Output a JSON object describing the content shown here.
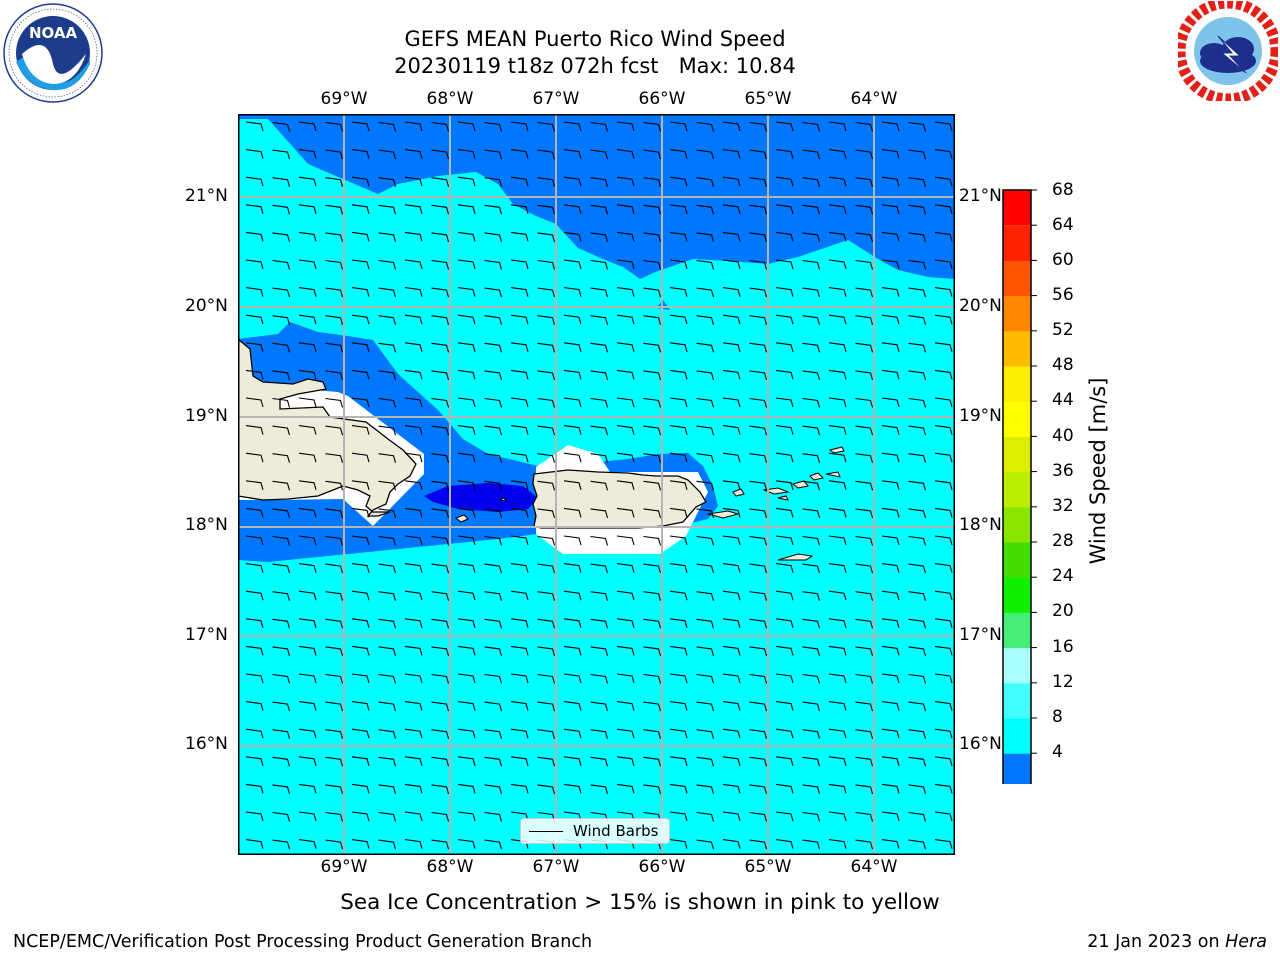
{
  "header": {
    "title_line1": "GEFS MEAN Puerto Rico Wind Speed",
    "title_line2": "20230119 t18z 072h fcst   Max: 10.84"
  },
  "logos": {
    "left": {
      "name": "NOAA",
      "ring_text": "NATIONAL OCEANIC AND ATMOSPHERIC ADMINISTRATION · U.S. DEPARTMENT OF COMMERCE"
    },
    "right": {
      "name": "NATIONAL WEATHER SERVICE"
    }
  },
  "map": {
    "region": "Puerto Rico",
    "lon_ticks": [
      "69°W",
      "68°W",
      "67°W",
      "66°W",
      "65°W",
      "64°W"
    ],
    "lat_ticks": [
      "21°N",
      "20°N",
      "19°N",
      "18°N",
      "17°N",
      "16°N"
    ],
    "legend_label": "Wind Barbs",
    "fill_colors": {
      "calm_4_8": "#0077ff",
      "below_4": "#0000ee",
      "w_8_12": "#00ffff",
      "land": "#eeebd8",
      "masked": "#ffffff"
    }
  },
  "colorbar": {
    "title": "Wind Speed [m/s]",
    "levels": [
      "4",
      "8",
      "12",
      "16",
      "20",
      "24",
      "28",
      "32",
      "36",
      "40",
      "44",
      "48",
      "52",
      "56",
      "60",
      "64",
      "68"
    ],
    "colors": [
      "#0077ff",
      "#00ffff",
      "#44ffff",
      "#aaffff",
      "#44ee77",
      "#11ee00",
      "#44dd00",
      "#88e600",
      "#bbee00",
      "#ddee00",
      "#ffff00",
      "#ffee00",
      "#ffbb00",
      "#ff8800",
      "#ff5500",
      "#ff2200",
      "#ff0000"
    ],
    "under_color": "#0000ff"
  },
  "note": "Sea Ice Concentration > 15% is shown in pink to yellow",
  "footer": {
    "left": "NCEP/EMC/Verification Post Processing Product Generation Branch",
    "right_date": "21 Jan 2023 on ",
    "right_host": "Hera"
  }
}
